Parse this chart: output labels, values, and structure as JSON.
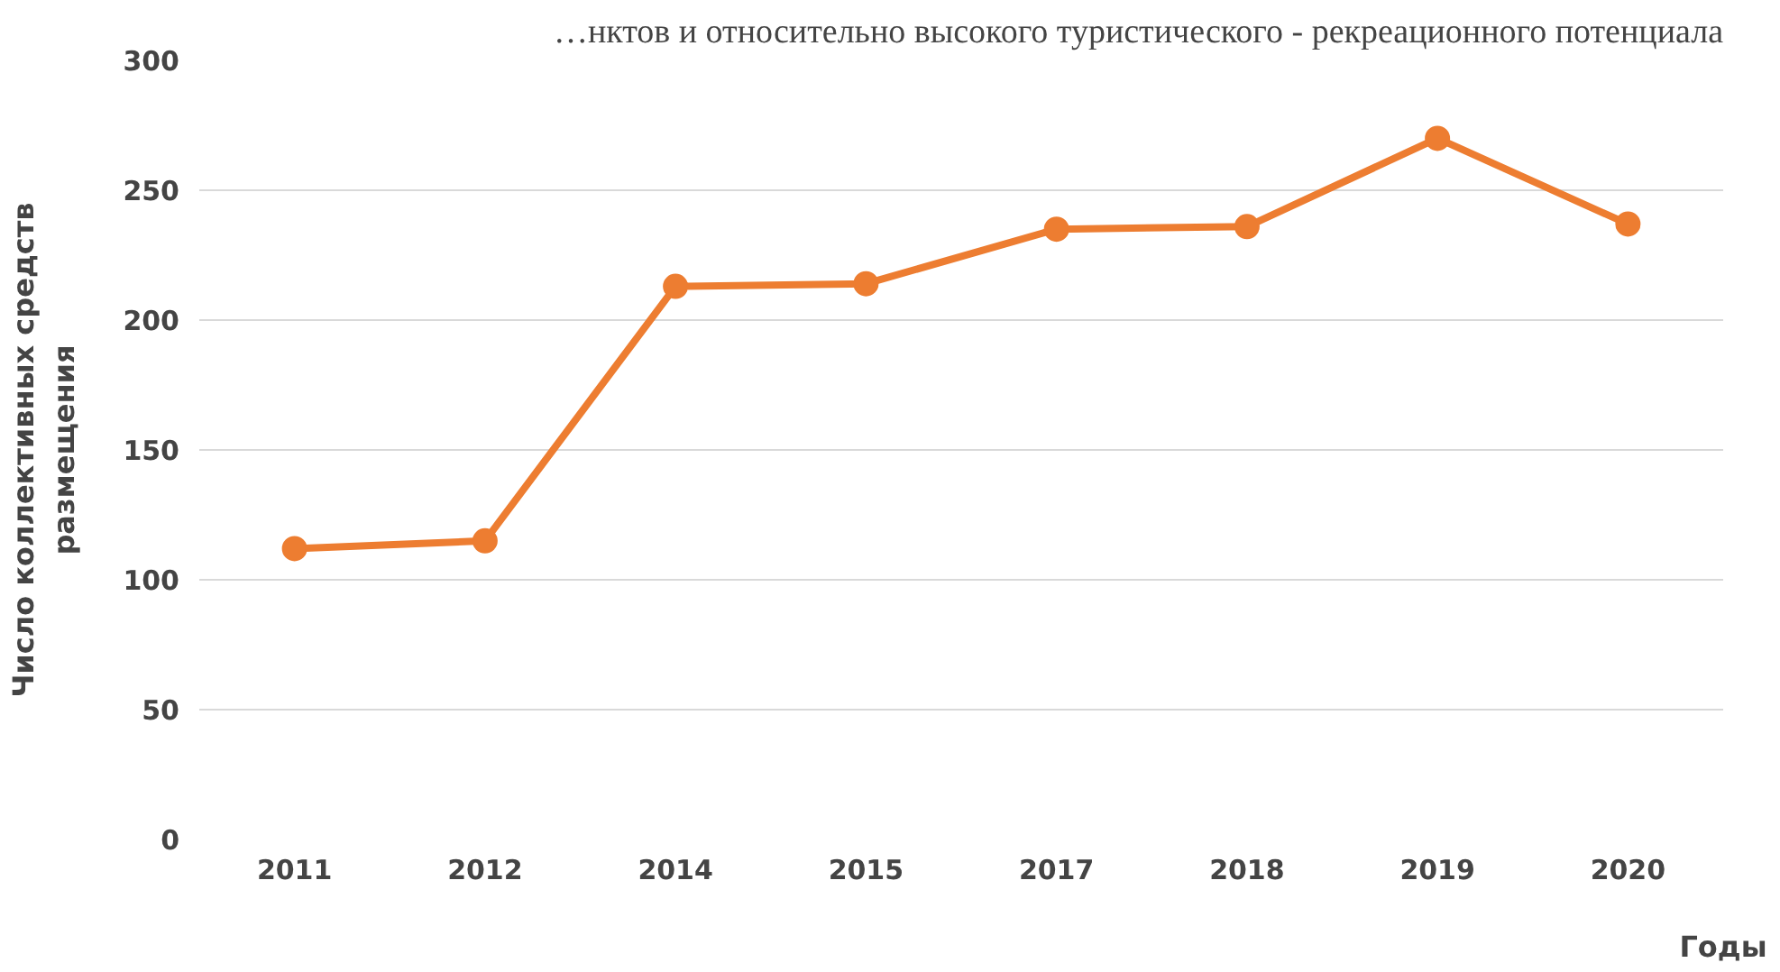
{
  "chart_data": {
    "type": "line",
    "annotations": [
      "…нктов и относительно высокого туристического - рекреационного потенциала"
    ],
    "xlabel": "Годы",
    "ylabel": "Число коллективных средств\nразмещения",
    "categories": [
      "2011",
      "2012",
      "2014",
      "2015",
      "2017",
      "2018",
      "2019",
      "2020"
    ],
    "series": [
      {
        "color": "#ed7d31",
        "values": [
          112,
          115,
          213,
          214,
          235,
          236,
          270,
          237
        ]
      }
    ],
    "ylim": [
      0,
      300
    ],
    "yticks": [
      0,
      50,
      100,
      150,
      200,
      250,
      300
    ],
    "grid": "y",
    "marker": "circle",
    "line_style": "solid"
  }
}
